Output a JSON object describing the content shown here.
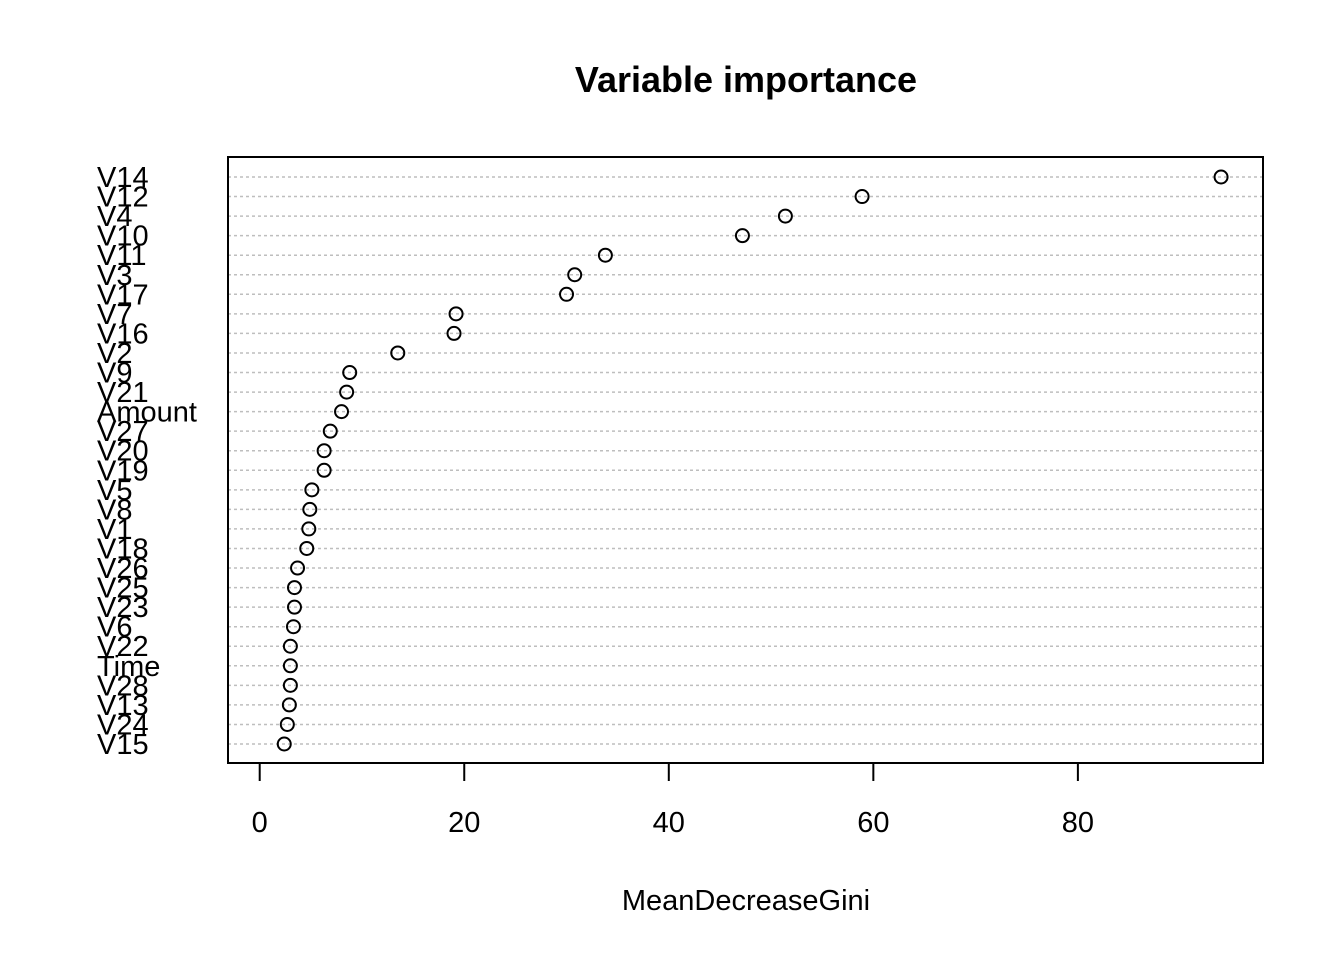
{
  "chart_data": {
    "type": "scatter",
    "title": "Variable importance",
    "xlabel": "MeanDecreaseGini",
    "ylabel": "",
    "xlim": [
      -3.1,
      98.1
    ],
    "xticks": [
      0,
      20,
      40,
      60,
      80
    ],
    "grid": "dotted horizontal lines",
    "legend": "none",
    "series": [
      {
        "categories": [
          "V14",
          "V12",
          "V4",
          "V10",
          "V11",
          "V3",
          "V17",
          "V7",
          "V16",
          "V2",
          "V9",
          "V21",
          "Amount",
          "V27",
          "V20",
          "V19",
          "V5",
          "V8",
          "V1",
          "V18",
          "V26",
          "V25",
          "V23",
          "V6",
          "V22",
          "Time",
          "V28",
          "V13",
          "V24",
          "V15"
        ],
        "values": [
          94.0,
          58.9,
          51.4,
          47.2,
          33.8,
          30.8,
          30.0,
          19.2,
          19.0,
          13.5,
          8.8,
          8.5,
          8.0,
          6.9,
          6.3,
          6.3,
          5.1,
          4.9,
          4.8,
          4.6,
          3.7,
          3.4,
          3.4,
          3.3,
          3.0,
          3.0,
          3.0,
          2.9,
          2.7,
          2.4
        ]
      }
    ],
    "colors": {
      "axis": "#000000",
      "grid": "#bebebe",
      "points": "#000000"
    }
  }
}
